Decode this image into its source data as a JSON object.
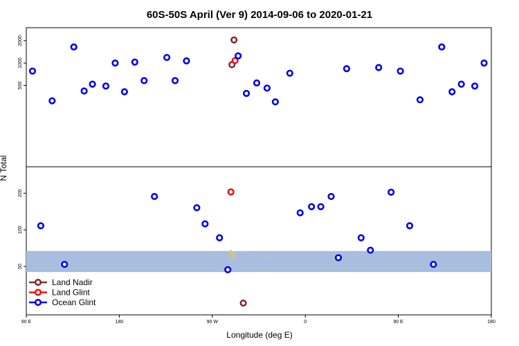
{
  "chart_data": {
    "type": "scatter",
    "title": "60S-50S April (Ver 9)   2014-09-06 to 2020-01-21",
    "xlabel": "Longitude (deg E)",
    "ylabel": "N Total",
    "x_ticks": [
      {
        "value": 90,
        "label": "90 E"
      },
      {
        "value": 180,
        "label": "180"
      },
      {
        "value": 270,
        "label": "90 W"
      },
      {
        "value": 360,
        "label": "0"
      },
      {
        "value": 450,
        "label": "90 E"
      },
      {
        "value": 540,
        "label": "180"
      }
    ],
    "xlim": [
      90,
      540
    ],
    "panels": [
      {
        "id": "top",
        "ylim": [
          40,
          3000
        ],
        "scale": "log",
        "ticks": [
          500,
          1000,
          2000
        ]
      },
      {
        "id": "bottom",
        "ylim": [
          20,
          330
        ],
        "scale": "log",
        "ticks": [
          50,
          100,
          200
        ]
      }
    ],
    "band": {
      "panel": "bottom",
      "y_range": [
        45,
        67
      ],
      "color": "#a7bedf"
    },
    "legend": {
      "placement": "bottom-left"
    },
    "series": [
      {
        "name": "Land Nadir",
        "color": "#8b2a2a",
        "points": [
          {
            "panel": "top",
            "x": 291,
            "y": 2050
          },
          {
            "panel": "top",
            "x": 289,
            "y": 950
          },
          {
            "panel": "bottom",
            "x": 300,
            "y": 25
          }
        ]
      },
      {
        "name": "Land Glint",
        "color": "#ee1111",
        "points": [
          {
            "panel": "top",
            "x": 292,
            "y": 1080
          },
          {
            "panel": "bottom",
            "x": 288,
            "y": 205
          }
        ]
      },
      {
        "name": "Ocean Glint",
        "color": "#0000ee",
        "points": [
          {
            "panel": "top",
            "x": 96,
            "y": 780
          },
          {
            "panel": "top",
            "x": 115,
            "y": 310
          },
          {
            "panel": "top",
            "x": 136,
            "y": 1650
          },
          {
            "panel": "top",
            "x": 146,
            "y": 420
          },
          {
            "panel": "top",
            "x": 154,
            "y": 520
          },
          {
            "panel": "top",
            "x": 167,
            "y": 490
          },
          {
            "panel": "top",
            "x": 176,
            "y": 1000
          },
          {
            "panel": "top",
            "x": 185,
            "y": 410
          },
          {
            "panel": "top",
            "x": 195,
            "y": 1030
          },
          {
            "panel": "top",
            "x": 204,
            "y": 580
          },
          {
            "panel": "top",
            "x": 226,
            "y": 1190
          },
          {
            "panel": "top",
            "x": 234,
            "y": 580
          },
          {
            "panel": "top",
            "x": 245,
            "y": 1070
          },
          {
            "panel": "top",
            "x": 295,
            "y": 1250
          },
          {
            "panel": "top",
            "x": 303,
            "y": 390
          },
          {
            "panel": "top",
            "x": 313,
            "y": 540
          },
          {
            "panel": "top",
            "x": 323,
            "y": 460
          },
          {
            "panel": "top",
            "x": 331,
            "y": 300
          },
          {
            "panel": "top",
            "x": 345,
            "y": 730
          },
          {
            "panel": "top",
            "x": 400,
            "y": 840
          },
          {
            "panel": "top",
            "x": 431,
            "y": 870
          },
          {
            "panel": "top",
            "x": 452,
            "y": 780
          },
          {
            "panel": "top",
            "x": 471,
            "y": 320
          },
          {
            "panel": "top",
            "x": 492,
            "y": 1650
          },
          {
            "panel": "top",
            "x": 502,
            "y": 410
          },
          {
            "panel": "top",
            "x": 511,
            "y": 520
          },
          {
            "panel": "top",
            "x": 524,
            "y": 490
          },
          {
            "panel": "top",
            "x": 533,
            "y": 1000
          },
          {
            "panel": "bottom",
            "x": 104,
            "y": 108
          },
          {
            "panel": "bottom",
            "x": 127,
            "y": 52
          },
          {
            "panel": "bottom",
            "x": 214,
            "y": 188
          },
          {
            "panel": "bottom",
            "x": 255,
            "y": 152
          },
          {
            "panel": "bottom",
            "x": 263,
            "y": 112
          },
          {
            "panel": "bottom",
            "x": 277,
            "y": 86
          },
          {
            "panel": "bottom",
            "x": 285,
            "y": 47
          },
          {
            "panel": "bottom",
            "x": 355,
            "y": 138
          },
          {
            "panel": "bottom",
            "x": 366,
            "y": 155
          },
          {
            "panel": "bottom",
            "x": 375,
            "y": 155
          },
          {
            "panel": "bottom",
            "x": 385,
            "y": 188
          },
          {
            "panel": "bottom",
            "x": 392,
            "y": 59
          },
          {
            "panel": "bottom",
            "x": 414,
            "y": 86
          },
          {
            "panel": "bottom",
            "x": 423,
            "y": 68
          },
          {
            "panel": "bottom",
            "x": 443,
            "y": 204
          },
          {
            "panel": "bottom",
            "x": 461,
            "y": 108
          },
          {
            "panel": "bottom",
            "x": 484,
            "y": 52
          }
        ]
      }
    ]
  }
}
